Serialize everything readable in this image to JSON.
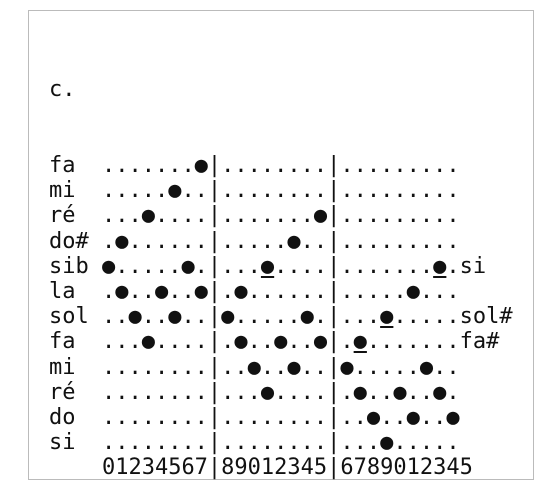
{
  "title": "c.",
  "rows": [
    {
      "label": "fa",
      "segments": [
        {
          "text": ".......●|........|........."
        }
      ]
    },
    {
      "label": "mi",
      "segments": [
        {
          "text": ".....●..|........|........."
        }
      ]
    },
    {
      "label": "ré",
      "segments": [
        {
          "text": "...●....|.......●|........."
        }
      ]
    },
    {
      "label": "do#",
      "segments": [
        {
          "text": ".●......|.....●..|........."
        }
      ]
    },
    {
      "label": "sib",
      "segments": [
        {
          "text": "●.....●.|..."
        },
        {
          "text": "●",
          "underline": true
        },
        {
          "text": "....|......."
        },
        {
          "text": "●",
          "underline": true
        },
        {
          "text": ".si"
        }
      ]
    },
    {
      "label": "la",
      "segments": [
        {
          "text": ".●..●..●|.●......|.....●..."
        }
      ]
    },
    {
      "label": "sol",
      "segments": [
        {
          "text": "..●..●..|●.....●.|..."
        },
        {
          "text": "●",
          "underline": true
        },
        {
          "text": ".....sol#"
        }
      ]
    },
    {
      "label": "fa",
      "segments": [
        {
          "text": "...●....|.●..●..●|."
        },
        {
          "text": "●",
          "underline": true
        },
        {
          "text": ".......fa#"
        }
      ]
    },
    {
      "label": "mi",
      "segments": [
        {
          "text": "........|..●..●..|●.....●.."
        }
      ]
    },
    {
      "label": "ré",
      "segments": [
        {
          "text": "........|...●....|.●..●..●."
        }
      ]
    },
    {
      "label": "do",
      "segments": [
        {
          "text": "........|........|..●..●..●"
        }
      ]
    },
    {
      "label": "si",
      "segments": [
        {
          "text": "........|........|...●....."
        }
      ]
    }
  ],
  "footer": "01234567|89012345|6789012345"
}
